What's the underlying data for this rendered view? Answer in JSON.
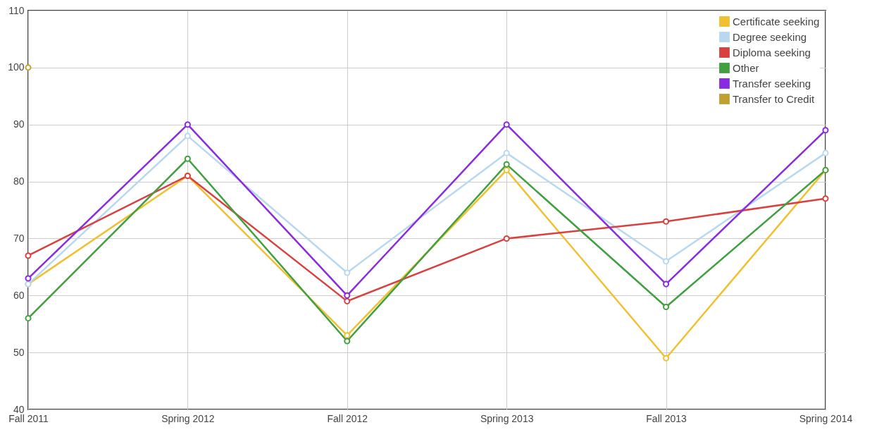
{
  "chart_data": {
    "type": "line",
    "categories": [
      "Fall 2011",
      "Spring 2012",
      "Fall 2012",
      "Spring 2013",
      "Fall 2013",
      "Spring 2014"
    ],
    "series": [
      {
        "name": "Certificate seeking",
        "color": "#f0c030",
        "values": [
          62,
          81,
          53,
          82,
          49,
          82
        ]
      },
      {
        "name": "Degree seeking",
        "color": "#b8d8f0",
        "values": [
          62,
          88,
          64,
          85,
          66,
          85
        ]
      },
      {
        "name": "Diploma seeking",
        "color": "#d94040",
        "values": [
          67,
          81,
          59,
          70,
          73,
          77
        ]
      },
      {
        "name": "Other",
        "color": "#40a040",
        "values": [
          56,
          84,
          52,
          83,
          58,
          82
        ]
      },
      {
        "name": "Transfer seeking",
        "color": "#8a2be2",
        "values": [
          63,
          90,
          60,
          90,
          62,
          89
        ]
      },
      {
        "name": "Transfer to Credit",
        "color": "#c0a030",
        "values": [
          100,
          null,
          null,
          null,
          null,
          null
        ]
      }
    ],
    "ylim": [
      40,
      110
    ],
    "yticks": [
      40,
      50,
      60,
      70,
      80,
      90,
      100,
      110
    ],
    "grid": true,
    "legend": "top right",
    "marker": "circle",
    "line_style": "solid"
  }
}
